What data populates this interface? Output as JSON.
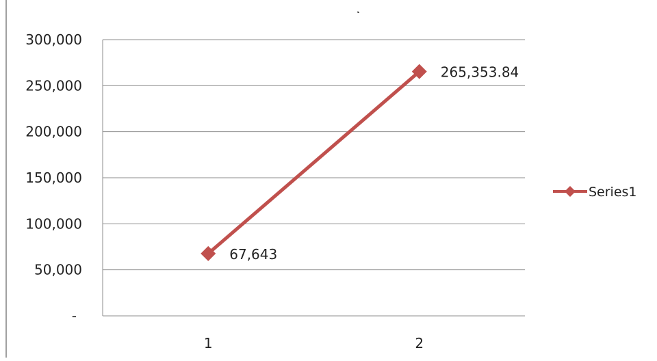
{
  "chart_data": {
    "type": "line",
    "title": "",
    "xlabel": "",
    "ylabel": "",
    "categories": [
      "1",
      "2"
    ],
    "ylim": [
      0,
      300000
    ],
    "yticks": [
      0,
      50000,
      100000,
      150000,
      200000,
      250000,
      300000
    ],
    "ytick_labels": [
      "-",
      "50,000",
      "100,000",
      "150,000",
      "200,000",
      "250,000",
      "300,000"
    ],
    "grid": true,
    "legend_position": "right",
    "series": [
      {
        "name": "Series1",
        "color": "#C0504D",
        "marker": "diamond",
        "values": [
          67643,
          265353.84
        ],
        "data_labels": [
          "67,643",
          "265,353.84"
        ]
      }
    ]
  }
}
